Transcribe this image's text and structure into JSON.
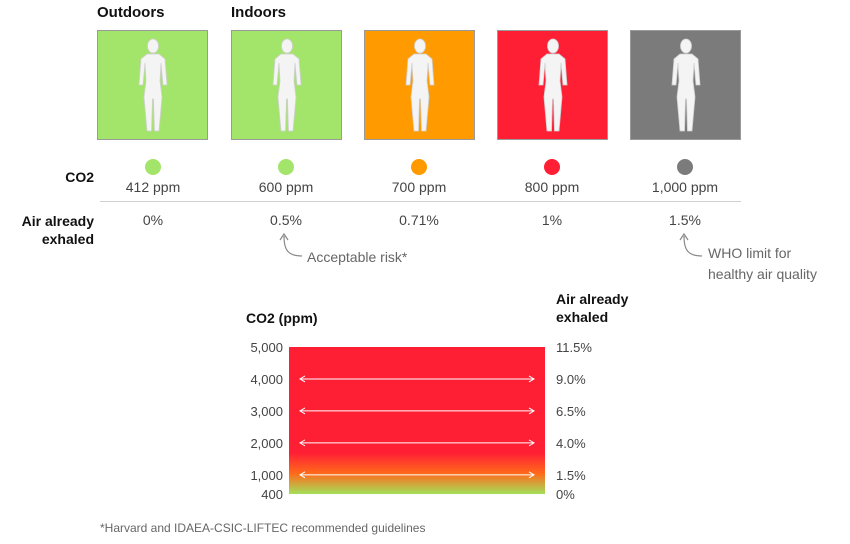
{
  "headers": {
    "outdoors": "Outdoors",
    "indoors": "Indoors"
  },
  "row_labels": {
    "co2": "CO2",
    "exhaled": "Air already exhaled"
  },
  "panels": [
    {
      "color": "#a3e56a",
      "ppm": "412 ppm",
      "pct": "0%"
    },
    {
      "color": "#a3e56a",
      "ppm": "600 ppm",
      "pct": "0.5%"
    },
    {
      "color": "#ff9a00",
      "ppm": "700 ppm",
      "pct": "0.71%"
    },
    {
      "color": "#ff1f35",
      "ppm": "800 ppm",
      "pct": "1%"
    },
    {
      "color": "#7b7b7b",
      "ppm": "1,000 ppm",
      "pct": "1.5%"
    }
  ],
  "notes": {
    "acceptable": "Acceptable risk*",
    "who_line1": "WHO limit for",
    "who_line2": "healthy air quality"
  },
  "footnote": "*Harvard and IDAEA-CSIC-LIFTEC recommended guidelines",
  "chart_data": {
    "type": "area",
    "left_axis_title": "CO2 (ppm)",
    "right_axis_title_line1": "Air already",
    "right_axis_title_line2": "exhaled",
    "left_ticks": [
      "5,000",
      "4,000",
      "3,000",
      "2,000",
      "1,000",
      "400"
    ],
    "right_ticks": [
      "11.5%",
      "9.0%",
      "6.5%",
      "4.0%",
      "1.5%",
      "0%"
    ],
    "ppm_values": [
      5000,
      4000,
      3000,
      2000,
      1000,
      400
    ],
    "exhaled_values": [
      11.5,
      9.0,
      6.5,
      4.0,
      1.5,
      0
    ],
    "arrow_levels": [
      4000,
      3000,
      2000,
      1000
    ],
    "ylim": [
      400,
      5000
    ],
    "gradient_colors": {
      "top": "#ff1f35",
      "mid": "#ff6a1a",
      "bottom": "#a3e05a"
    }
  }
}
